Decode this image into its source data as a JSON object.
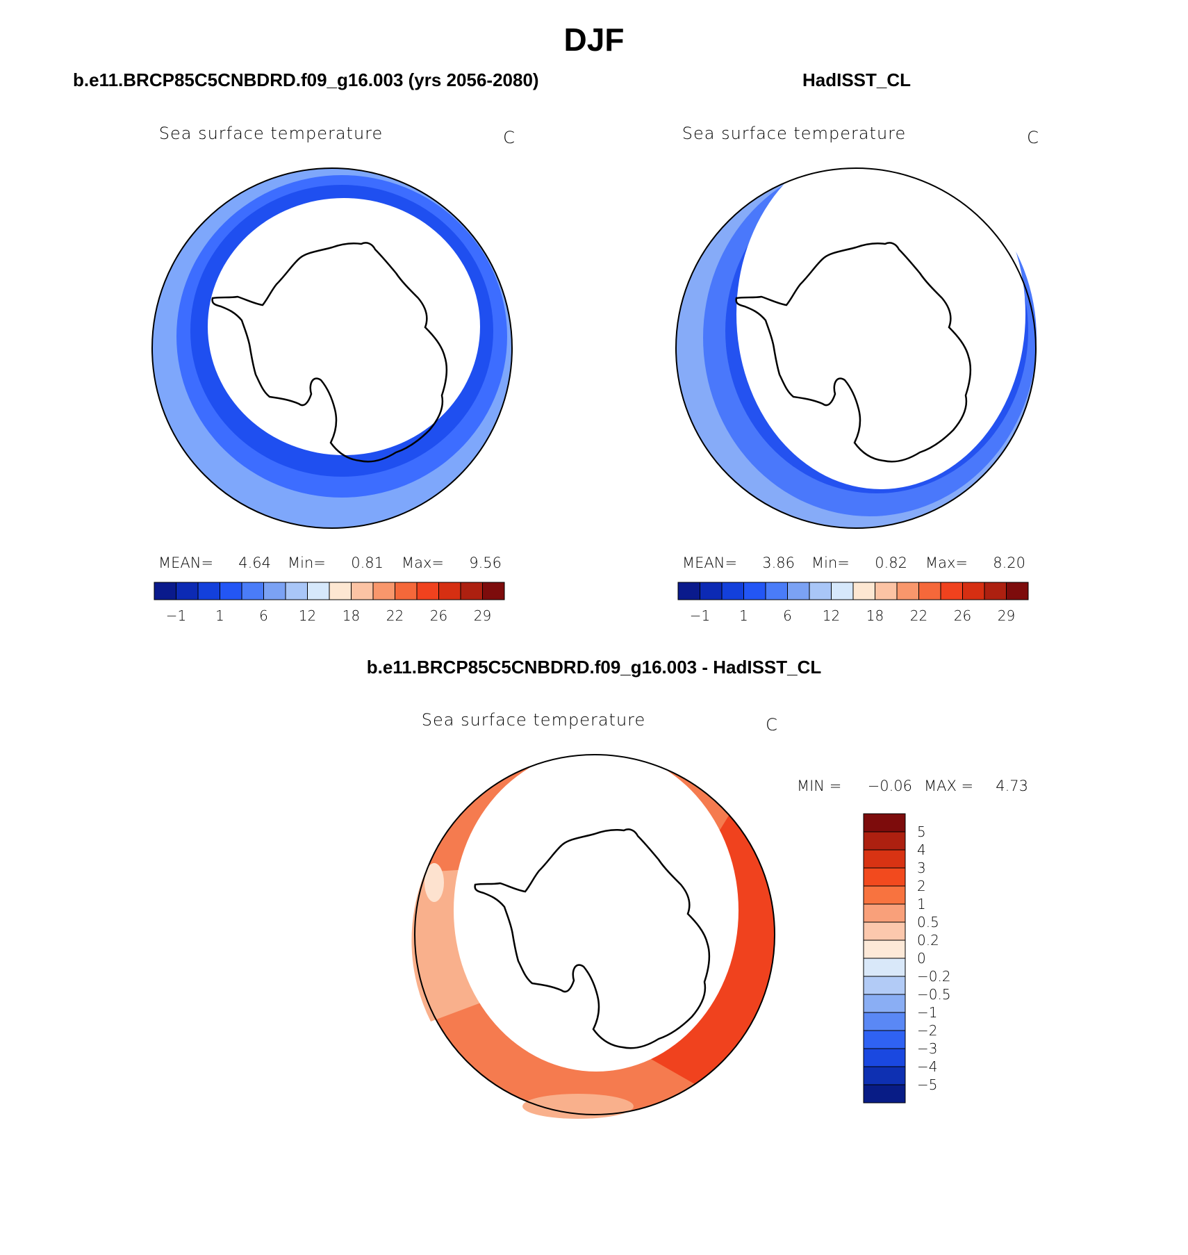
{
  "figure": {
    "title": "DJF",
    "panels": [
      {
        "id": "model",
        "header": "b.e11.BRCP85C5CNBDRD.f09_g16.003 (yrs 2056-2080)",
        "plot_title": "Sea surface temperature",
        "units": "C",
        "stats": {
          "mean_label": "MEAN=",
          "mean": "4.64",
          "min_label": "Min=",
          "min": "0.81",
          "max_label": "Max=",
          "max": "9.56"
        },
        "fill_colors": [
          "#1f4ff0",
          "#3d6dff",
          "#7ea7fb"
        ]
      },
      {
        "id": "obs",
        "header": "HadISST_CL",
        "plot_title": "Sea surface temperature",
        "units": "C",
        "stats": {
          "mean_label": "MEAN=",
          "mean": "3.86",
          "min_label": "Min=",
          "min": "0.82",
          "max_label": "Max=",
          "max": "8.20"
        },
        "fill_colors": [
          "#2452f0",
          "#4a78fb",
          "#86abf8"
        ]
      }
    ],
    "abs_colorbar": {
      "colors": [
        "#0a1a8c",
        "#0c2ab4",
        "#1340db",
        "#2356f5",
        "#4a7cf8",
        "#7ba2f4",
        "#a9c6f7",
        "#d6e8fb",
        "#fde7d2",
        "#fcc3a4",
        "#f9976c",
        "#f5683a",
        "#f0421e",
        "#d62f12",
        "#ad2010",
        "#7d0c0c"
      ],
      "tick_labels": [
        "−1",
        "1",
        "6",
        "12",
        "18",
        "22",
        "26",
        "29"
      ]
    },
    "diff": {
      "header": "b.e11.BRCP85C5CNBDRD.f09_g16.003 - HadISST_CL",
      "plot_title": "Sea surface temperature",
      "units": "C",
      "stats": {
        "min_label": "MIN =",
        "min": "−0.06",
        "max_label": "MAX =",
        "max": "4.73"
      },
      "fill_colors": [
        "#f0421e",
        "#f57b4f",
        "#f9b08c",
        "#fde2cf"
      ],
      "colorbar": {
        "colors": [
          "#7d0c0c",
          "#ad2010",
          "#d83313",
          "#f24a1e",
          "#f8733f",
          "#f9a07a",
          "#fcc8ad",
          "#fde9d8",
          "#d9e8f9",
          "#b2cbf6",
          "#8aaef4",
          "#5a88f5",
          "#2f62f3",
          "#1a48e0",
          "#0e30b2",
          "#081c86"
        ],
        "tick_labels": [
          "5",
          "4",
          "3",
          "2",
          "1",
          "0.5",
          "0.2",
          "0",
          "−0.2",
          "−0.5",
          "−1",
          "−2",
          "−3",
          "−4",
          "−5"
        ]
      }
    }
  }
}
